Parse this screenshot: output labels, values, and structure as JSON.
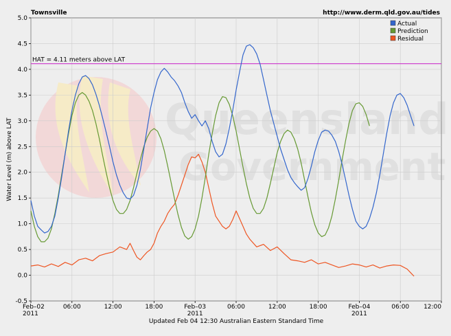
{
  "chart_data": {
    "type": "line",
    "title": "Townsville",
    "source_url": "http://www.derm.qld.gov.au/tides",
    "ylabel": "Water Level (m) above LAT",
    "footer": "Updated Feb 04 12:30 Australian Eastern Standard Time",
    "ylim": [
      -0.5,
      5.0
    ],
    "y_ticks": [
      -0.5,
      0.0,
      0.5,
      1.0,
      1.5,
      2.0,
      2.5,
      3.0,
      3.5,
      4.0,
      4.5,
      5.0
    ],
    "x_range_hours": [
      0,
      60
    ],
    "x_ticks": [
      {
        "hour": 0,
        "label": "Feb–02",
        "sub": "2011"
      },
      {
        "hour": 6,
        "label": "06:00",
        "sub": ""
      },
      {
        "hour": 12,
        "label": "12:00",
        "sub": ""
      },
      {
        "hour": 18,
        "label": "18:00",
        "sub": ""
      },
      {
        "hour": 24,
        "label": "Feb–03",
        "sub": "2011"
      },
      {
        "hour": 30,
        "label": "06:00",
        "sub": ""
      },
      {
        "hour": 36,
        "label": "12:00",
        "sub": ""
      },
      {
        "hour": 42,
        "label": "18:00",
        "sub": ""
      },
      {
        "hour": 48,
        "label": "Feb–04",
        "sub": "2011"
      },
      {
        "hour": 54,
        "label": "06:00",
        "sub": ""
      },
      {
        "hour": 60,
        "label": "12:00",
        "sub": ""
      }
    ],
    "grid": true,
    "legend": "top-right",
    "hat_line": {
      "value": 4.11,
      "label": "HAT = 4.11 meters above LAT",
      "color": "#cc33cc"
    },
    "series": [
      {
        "name": "Actual",
        "color": "#3366cc",
        "points": [
          [
            0,
            1.45
          ],
          [
            0.5,
            1.15
          ],
          [
            1,
            0.95
          ],
          [
            1.5,
            0.88
          ],
          [
            2,
            0.82
          ],
          [
            2.5,
            0.85
          ],
          [
            3,
            0.95
          ],
          [
            3.5,
            1.15
          ],
          [
            4,
            1.5
          ],
          [
            4.5,
            1.9
          ],
          [
            5,
            2.35
          ],
          [
            5.5,
            2.8
          ],
          [
            6,
            3.2
          ],
          [
            6.5,
            3.5
          ],
          [
            7,
            3.72
          ],
          [
            7.5,
            3.85
          ],
          [
            8,
            3.88
          ],
          [
            8.5,
            3.82
          ],
          [
            9,
            3.7
          ],
          [
            9.5,
            3.52
          ],
          [
            10,
            3.3
          ],
          [
            10.5,
            3.05
          ],
          [
            11,
            2.78
          ],
          [
            11.5,
            2.5
          ],
          [
            12,
            2.2
          ],
          [
            12.5,
            1.95
          ],
          [
            13,
            1.75
          ],
          [
            13.5,
            1.6
          ],
          [
            14,
            1.5
          ],
          [
            14.5,
            1.48
          ],
          [
            15,
            1.55
          ],
          [
            15.5,
            1.75
          ],
          [
            16,
            2.05
          ],
          [
            16.5,
            2.45
          ],
          [
            17,
            2.85
          ],
          [
            17.5,
            3.25
          ],
          [
            18,
            3.55
          ],
          [
            18.5,
            3.8
          ],
          [
            19,
            3.95
          ],
          [
            19.5,
            4.02
          ],
          [
            20,
            3.95
          ],
          [
            20.5,
            3.85
          ],
          [
            21,
            3.78
          ],
          [
            21.5,
            3.68
          ],
          [
            22,
            3.55
          ],
          [
            22.5,
            3.35
          ],
          [
            23,
            3.18
          ],
          [
            23.5,
            3.05
          ],
          [
            24,
            3.12
          ],
          [
            24.5,
            3.0
          ],
          [
            25,
            2.9
          ],
          [
            25.5,
            3.0
          ],
          [
            26,
            2.85
          ],
          [
            26.5,
            2.6
          ],
          [
            27,
            2.4
          ],
          [
            27.5,
            2.3
          ],
          [
            28,
            2.35
          ],
          [
            28.5,
            2.55
          ],
          [
            29,
            2.85
          ],
          [
            29.5,
            3.2
          ],
          [
            30,
            3.6
          ],
          [
            30.5,
            3.95
          ],
          [
            31,
            4.28
          ],
          [
            31.5,
            4.45
          ],
          [
            32,
            4.48
          ],
          [
            32.5,
            4.42
          ],
          [
            33,
            4.3
          ],
          [
            33.5,
            4.1
          ],
          [
            34,
            3.8
          ],
          [
            34.5,
            3.5
          ],
          [
            35,
            3.2
          ],
          [
            35.5,
            2.95
          ],
          [
            36,
            2.7
          ],
          [
            36.5,
            2.45
          ],
          [
            37,
            2.25
          ],
          [
            37.5,
            2.05
          ],
          [
            38,
            1.9
          ],
          [
            38.5,
            1.8
          ],
          [
            39,
            1.72
          ],
          [
            39.5,
            1.65
          ],
          [
            40,
            1.7
          ],
          [
            40.5,
            1.88
          ],
          [
            41,
            2.12
          ],
          [
            41.5,
            2.4
          ],
          [
            42,
            2.62
          ],
          [
            42.5,
            2.78
          ],
          [
            43,
            2.82
          ],
          [
            43.5,
            2.8
          ],
          [
            44,
            2.72
          ],
          [
            44.5,
            2.6
          ],
          [
            45,
            2.4
          ],
          [
            45.5,
            2.15
          ],
          [
            46,
            1.85
          ],
          [
            46.5,
            1.55
          ],
          [
            47,
            1.28
          ],
          [
            47.5,
            1.05
          ],
          [
            48,
            0.95
          ],
          [
            48.5,
            0.9
          ],
          [
            49,
            0.95
          ],
          [
            49.5,
            1.1
          ],
          [
            50,
            1.32
          ],
          [
            50.5,
            1.6
          ],
          [
            51,
            1.95
          ],
          [
            51.5,
            2.35
          ],
          [
            52,
            2.75
          ],
          [
            52.5,
            3.1
          ],
          [
            53,
            3.35
          ],
          [
            53.5,
            3.5
          ],
          [
            54,
            3.53
          ],
          [
            54.5,
            3.45
          ],
          [
            55,
            3.3
          ],
          [
            55.5,
            3.1
          ],
          [
            56,
            2.9
          ]
        ]
      },
      {
        "name": "Prediction",
        "color": "#669933",
        "points": [
          [
            0,
            1.25
          ],
          [
            0.5,
            0.95
          ],
          [
            1,
            0.75
          ],
          [
            1.5,
            0.65
          ],
          [
            2,
            0.65
          ],
          [
            2.5,
            0.72
          ],
          [
            3,
            0.9
          ],
          [
            3.5,
            1.2
          ],
          [
            4,
            1.55
          ],
          [
            4.5,
            1.95
          ],
          [
            5,
            2.35
          ],
          [
            5.5,
            2.75
          ],
          [
            6,
            3.1
          ],
          [
            6.5,
            3.35
          ],
          [
            7,
            3.5
          ],
          [
            7.5,
            3.55
          ],
          [
            8,
            3.5
          ],
          [
            8.5,
            3.38
          ],
          [
            9,
            3.2
          ],
          [
            9.5,
            2.95
          ],
          [
            10,
            2.65
          ],
          [
            10.5,
            2.32
          ],
          [
            11,
            2.0
          ],
          [
            11.5,
            1.7
          ],
          [
            12,
            1.45
          ],
          [
            12.5,
            1.28
          ],
          [
            13,
            1.2
          ],
          [
            13.5,
            1.2
          ],
          [
            14,
            1.28
          ],
          [
            14.5,
            1.45
          ],
          [
            15,
            1.7
          ],
          [
            15.5,
            1.98
          ],
          [
            16,
            2.25
          ],
          [
            16.5,
            2.5
          ],
          [
            17,
            2.68
          ],
          [
            17.5,
            2.8
          ],
          [
            18,
            2.85
          ],
          [
            18.5,
            2.8
          ],
          [
            19,
            2.65
          ],
          [
            19.5,
            2.42
          ],
          [
            20,
            2.12
          ],
          [
            20.5,
            1.8
          ],
          [
            21,
            1.48
          ],
          [
            21.5,
            1.18
          ],
          [
            22,
            0.93
          ],
          [
            22.5,
            0.76
          ],
          [
            23,
            0.7
          ],
          [
            23.5,
            0.75
          ],
          [
            24,
            0.9
          ],
          [
            24.5,
            1.15
          ],
          [
            25,
            1.5
          ],
          [
            25.5,
            1.9
          ],
          [
            26,
            2.35
          ],
          [
            26.5,
            2.75
          ],
          [
            27,
            3.1
          ],
          [
            27.5,
            3.35
          ],
          [
            28,
            3.47
          ],
          [
            28.5,
            3.45
          ],
          [
            29,
            3.32
          ],
          [
            29.5,
            3.1
          ],
          [
            30,
            2.8
          ],
          [
            30.5,
            2.45
          ],
          [
            31,
            2.1
          ],
          [
            31.5,
            1.78
          ],
          [
            32,
            1.5
          ],
          [
            32.5,
            1.3
          ],
          [
            33,
            1.2
          ],
          [
            33.5,
            1.2
          ],
          [
            34,
            1.3
          ],
          [
            34.5,
            1.5
          ],
          [
            35,
            1.78
          ],
          [
            35.5,
            2.08
          ],
          [
            36,
            2.38
          ],
          [
            36.5,
            2.6
          ],
          [
            37,
            2.75
          ],
          [
            37.5,
            2.82
          ],
          [
            38,
            2.78
          ],
          [
            38.5,
            2.65
          ],
          [
            39,
            2.45
          ],
          [
            39.5,
            2.18
          ],
          [
            40,
            1.85
          ],
          [
            40.5,
            1.52
          ],
          [
            41,
            1.22
          ],
          [
            41.5,
            0.98
          ],
          [
            42,
            0.82
          ],
          [
            42.5,
            0.75
          ],
          [
            43,
            0.78
          ],
          [
            43.5,
            0.92
          ],
          [
            44,
            1.15
          ],
          [
            44.5,
            1.48
          ],
          [
            45,
            1.85
          ],
          [
            45.5,
            2.25
          ],
          [
            46,
            2.62
          ],
          [
            46.5,
            2.95
          ],
          [
            47,
            3.2
          ],
          [
            47.5,
            3.33
          ],
          [
            48,
            3.35
          ],
          [
            48.5,
            3.28
          ],
          [
            49,
            3.12
          ],
          [
            49.5,
            2.9
          ]
        ]
      },
      {
        "name": "Residual",
        "color": "#ee5522",
        "points": [
          [
            0,
            0.18
          ],
          [
            1,
            0.2
          ],
          [
            2,
            0.16
          ],
          [
            3,
            0.22
          ],
          [
            4,
            0.17
          ],
          [
            5,
            0.25
          ],
          [
            6,
            0.2
          ],
          [
            7,
            0.3
          ],
          [
            8,
            0.33
          ],
          [
            9,
            0.28
          ],
          [
            10,
            0.38
          ],
          [
            11,
            0.42
          ],
          [
            12,
            0.45
          ],
          [
            13,
            0.55
          ],
          [
            14,
            0.5
          ],
          [
            14.5,
            0.62
          ],
          [
            15,
            0.48
          ],
          [
            15.5,
            0.35
          ],
          [
            16,
            0.3
          ],
          [
            16.5,
            0.38
          ],
          [
            17,
            0.45
          ],
          [
            17.5,
            0.5
          ],
          [
            18,
            0.62
          ],
          [
            18.5,
            0.82
          ],
          [
            19,
            0.95
          ],
          [
            19.5,
            1.05
          ],
          [
            20,
            1.2
          ],
          [
            20.5,
            1.3
          ],
          [
            21,
            1.38
          ],
          [
            21.5,
            1.55
          ],
          [
            22,
            1.75
          ],
          [
            22.5,
            1.95
          ],
          [
            23,
            2.15
          ],
          [
            23.5,
            2.3
          ],
          [
            24,
            2.28
          ],
          [
            24.5,
            2.35
          ],
          [
            25,
            2.2
          ],
          [
            25.5,
            2.0
          ],
          [
            26,
            1.7
          ],
          [
            26.5,
            1.4
          ],
          [
            27,
            1.15
          ],
          [
            27.5,
            1.05
          ],
          [
            28,
            0.95
          ],
          [
            28.5,
            0.9
          ],
          [
            29,
            0.95
          ],
          [
            29.5,
            1.08
          ],
          [
            30,
            1.25
          ],
          [
            30.5,
            1.1
          ],
          [
            31,
            0.95
          ],
          [
            31.5,
            0.8
          ],
          [
            32,
            0.7
          ],
          [
            33,
            0.55
          ],
          [
            34,
            0.6
          ],
          [
            35,
            0.48
          ],
          [
            36,
            0.55
          ],
          [
            37,
            0.42
          ],
          [
            38,
            0.3
          ],
          [
            39,
            0.28
          ],
          [
            40,
            0.25
          ],
          [
            41,
            0.3
          ],
          [
            42,
            0.22
          ],
          [
            43,
            0.25
          ],
          [
            44,
            0.2
          ],
          [
            45,
            0.15
          ],
          [
            46,
            0.18
          ],
          [
            47,
            0.22
          ],
          [
            48,
            0.2
          ],
          [
            49,
            0.16
          ],
          [
            50,
            0.2
          ],
          [
            51,
            0.14
          ],
          [
            52,
            0.18
          ],
          [
            53,
            0.2
          ],
          [
            54,
            0.19
          ],
          [
            55,
            0.12
          ],
          [
            55.5,
            0.05
          ],
          [
            56,
            -0.02
          ]
        ]
      }
    ]
  }
}
